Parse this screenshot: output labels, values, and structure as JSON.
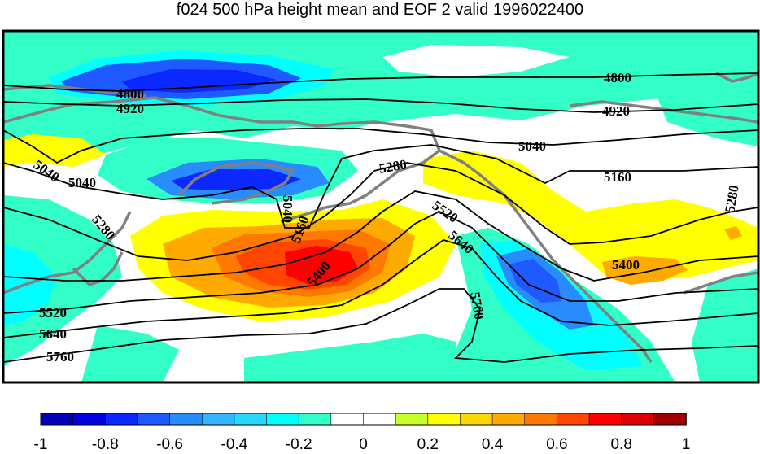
{
  "title": "f024 500 hPa height mean and EOF 2 valid 1996022400",
  "contour_levels": [
    "4800",
    "4920",
    "5040",
    "5160",
    "5280",
    "5400",
    "5520",
    "5640",
    "5760"
  ],
  "contour_labels": [
    "4800",
    "4800",
    "4920",
    "4920",
    "5040",
    "5040",
    "5040",
    "5040",
    "5160",
    "5160",
    "5280",
    "5280",
    "5280",
    "5400",
    "5400",
    "5520",
    "5520",
    "5640",
    "5640",
    "5760",
    "5760"
  ],
  "colorbar": {
    "ticks": [
      "-1",
      "-0.8",
      "-0.6",
      "-0.4",
      "-0.2",
      "0",
      "0.2",
      "0.4",
      "0.6",
      "0.8",
      "1"
    ],
    "colors": [
      "#0000b4",
      "#0000e1",
      "#0a28ff",
      "#1e5aff",
      "#288cff",
      "#32b4ff",
      "#28d7ff",
      "#00ffff",
      "#32ffc8",
      "#ffffff",
      "#ffffff",
      "#c8ff28",
      "#ffff00",
      "#ffd700",
      "#ffaa00",
      "#ff7800",
      "#ff4600",
      "#ff0000",
      "#dc0000",
      "#a00000"
    ]
  },
  "colors": {
    "land_outline": "#808080",
    "contours": "#000000",
    "frame": "#000000"
  }
}
